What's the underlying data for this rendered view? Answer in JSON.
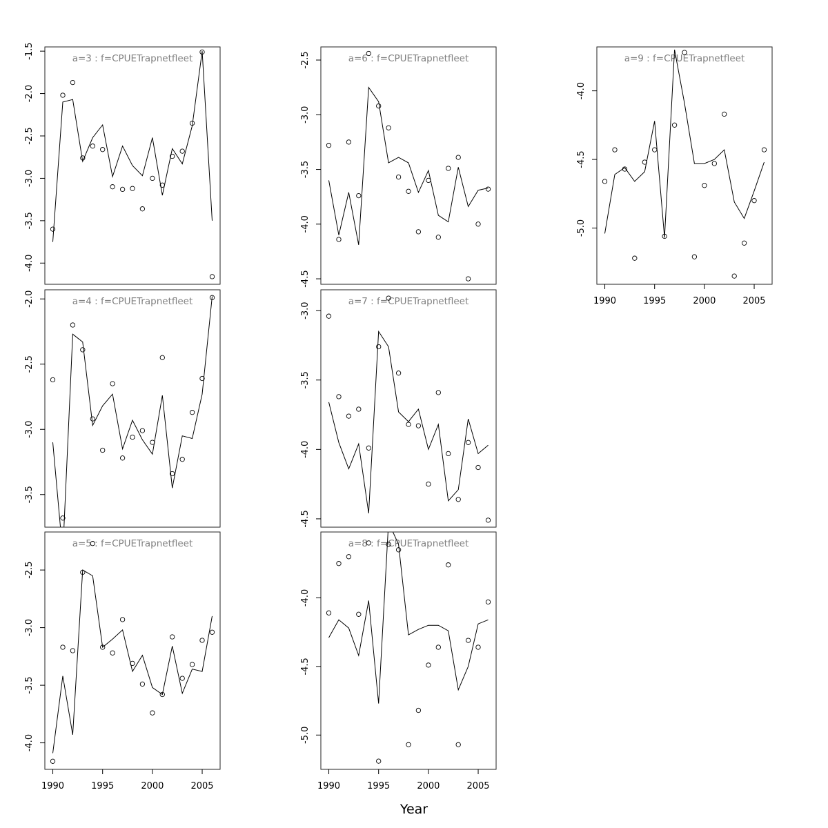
{
  "figure": {
    "xlabel": "Year"
  },
  "chart_data": [
    {
      "type": "line+scatter",
      "title": "a=3  :  f=CPUETrapnetfleet",
      "xlim": [
        1989.2,
        2006.8
      ],
      "ylim": [
        -4.25,
        -1.45
      ],
      "yticks": [
        "-1.5",
        "-2.0",
        "-2.5",
        "-3.0",
        "-3.5",
        "-4.0"
      ],
      "x": [
        1990,
        1991,
        1992,
        1993,
        1994,
        1995,
        1996,
        1997,
        1998,
        1999,
        2000,
        2001,
        2002,
        2003,
        2004,
        2005,
        2006
      ],
      "fitted": [
        -3.75,
        -2.1,
        -2.07,
        -2.8,
        -2.52,
        -2.37,
        -2.98,
        -2.62,
        -2.85,
        -2.97,
        -2.52,
        -3.2,
        -2.65,
        -2.83,
        -2.38,
        -1.5,
        -3.5
      ],
      "observed": [
        -3.6,
        -2.02,
        -1.87,
        -2.76,
        -2.62,
        -2.66,
        -3.1,
        -3.13,
        -3.12,
        -3.36,
        -3.0,
        -3.08,
        -2.74,
        -2.68,
        -2.35,
        -1.51,
        -4.16
      ]
    },
    {
      "type": "line+scatter",
      "title": "a=4  :  f=CPUETrapnetfleet",
      "xlim": [
        1989.2,
        2006.8
      ],
      "ylim": [
        -3.75,
        -1.93
      ],
      "yticks": [
        "-2.0",
        "-2.5",
        "-3.0",
        "-3.5"
      ],
      "x": [
        1990,
        1991,
        1992,
        1993,
        1994,
        1995,
        1996,
        1997,
        1998,
        1999,
        2000,
        2001,
        2002,
        2003,
        2004,
        2005,
        2006
      ],
      "fitted": [
        -3.1,
        -3.95,
        -2.27,
        -2.33,
        -2.97,
        -2.82,
        -2.73,
        -3.15,
        -2.93,
        -3.08,
        -3.19,
        -2.74,
        -3.45,
        -3.05,
        -3.07,
        -2.73,
        -1.98
      ],
      "observed": [
        -2.62,
        -3.68,
        -2.2,
        -2.39,
        -2.92,
        -3.16,
        -2.65,
        -3.22,
        -3.06,
        -3.01,
        -3.1,
        -2.45,
        -3.34,
        -3.23,
        -2.87,
        -2.61,
        -1.99
      ]
    },
    {
      "type": "line+scatter",
      "title": "a=5  :  f=CPUETrapnetfleet",
      "xlim": [
        1989.2,
        2006.8
      ],
      "ylim": [
        -4.23,
        -2.17
      ],
      "yticks": [
        "-2.5",
        "-3.0",
        "-3.5",
        "-4.0"
      ],
      "x": [
        1990,
        1991,
        1992,
        1993,
        1994,
        1995,
        1996,
        1997,
        1998,
        1999,
        2000,
        2001,
        2002,
        2003,
        2004,
        2005,
        2006
      ],
      "fitted": [
        -4.09,
        -3.42,
        -3.93,
        -2.5,
        -2.55,
        -3.17,
        -3.1,
        -3.02,
        -3.38,
        -3.24,
        -3.52,
        -3.58,
        -3.16,
        -3.57,
        -3.36,
        -3.38,
        -2.9
      ],
      "observed": [
        -4.16,
        -3.17,
        -3.2,
        -2.52,
        -2.27,
        -3.17,
        -3.22,
        -2.93,
        -3.31,
        -3.49,
        -3.74,
        -3.58,
        -3.08,
        -3.44,
        -3.32,
        -3.11,
        -3.04
      ]
    },
    {
      "type": "line+scatter",
      "title": "a=6  :  f=CPUETrapnetfleet",
      "xlim": [
        1989.2,
        2006.8
      ],
      "ylim": [
        -4.55,
        -2.38
      ],
      "yticks": [
        "-2.5",
        "-3.0",
        "-3.5",
        "-4.0",
        "-4.5"
      ],
      "x": [
        1990,
        1991,
        1992,
        1993,
        1994,
        1995,
        1996,
        1997,
        1998,
        1999,
        2000,
        2001,
        2002,
        2003,
        2004,
        2005,
        2006
      ],
      "fitted": [
        -3.6,
        -4.1,
        -3.71,
        -4.19,
        -2.75,
        -2.88,
        -3.44,
        -3.39,
        -3.44,
        -3.71,
        -3.51,
        -3.92,
        -3.98,
        -3.48,
        -3.84,
        -3.69,
        -3.67
      ],
      "observed": [
        -3.28,
        -4.14,
        -3.25,
        -3.74,
        -2.44,
        -2.92,
        -3.12,
        -3.57,
        -3.7,
        -4.07,
        -3.6,
        -4.12,
        -3.49,
        -3.39,
        -4.5,
        -4.0,
        -3.68
      ]
    },
    {
      "type": "line+scatter",
      "title": "a=7  :  f=CPUETrapnetfleet",
      "xlim": [
        1989.2,
        2006.8
      ],
      "ylim": [
        -4.56,
        -2.85
      ],
      "yticks": [
        "-3.0",
        "-3.5",
        "-4.0",
        "-4.5"
      ],
      "x": [
        1990,
        1991,
        1992,
        1993,
        1994,
        1995,
        1996,
        1997,
        1998,
        1999,
        2000,
        2001,
        2002,
        2003,
        2004,
        2005,
        2006
      ],
      "fitted": [
        -3.66,
        -3.95,
        -4.14,
        -3.96,
        -4.46,
        -3.15,
        -3.26,
        -3.73,
        -3.8,
        -3.71,
        -4.0,
        -3.82,
        -4.37,
        -4.29,
        -3.78,
        -4.03,
        -3.97
      ],
      "observed": [
        -3.04,
        -3.62,
        -3.76,
        -3.71,
        -3.99,
        -3.26,
        -2.91,
        -3.45,
        -3.82,
        -3.83,
        -4.25,
        -3.59,
        -4.03,
        -4.36,
        -3.95,
        -4.13,
        -4.51
      ]
    },
    {
      "type": "line+scatter",
      "title": "a=8  :  f=CPUETrapnetfleet",
      "xlim": [
        1989.2,
        2006.8
      ],
      "ylim": [
        -5.25,
        -3.52
      ],
      "yticks": [
        "-4.0",
        "-4.5",
        "-5.0"
      ],
      "x": [
        1990,
        1991,
        1992,
        1993,
        1994,
        1995,
        1996,
        1997,
        1998,
        1999,
        2000,
        2001,
        2002,
        2003,
        2004,
        2005,
        2006
      ],
      "fitted": [
        -4.29,
        -4.16,
        -4.22,
        -4.42,
        -4.02,
        -4.77,
        -3.45,
        -3.61,
        -4.27,
        -4.23,
        -4.2,
        -4.2,
        -4.24,
        -4.67,
        -4.5,
        -4.19,
        -4.16
      ],
      "observed": [
        -4.11,
        -3.75,
        -3.7,
        -4.12,
        -3.6,
        -5.19,
        -3.61,
        -3.65,
        -5.07,
        -4.82,
        -4.49,
        -4.36,
        -3.76,
        -5.07,
        -4.31,
        -4.36,
        -4.03
      ]
    },
    {
      "type": "line+scatter",
      "title": "a=9  :  f=CPUETrapnetfleet",
      "xlim": [
        1989.2,
        2006.8
      ],
      "ylim": [
        -5.41,
        -3.68
      ],
      "yticks": [
        "-4.0",
        "-4.5",
        "-5.0"
      ],
      "x": [
        1990,
        1991,
        1992,
        1993,
        1994,
        1995,
        1996,
        1997,
        1998,
        1999,
        2000,
        2001,
        2002,
        2003,
        2004,
        2005,
        2006
      ],
      "fitted": [
        -5.04,
        -4.61,
        -4.56,
        -4.66,
        -4.59,
        -4.22,
        -5.07,
        -3.7,
        -4.09,
        -4.53,
        -4.53,
        -4.5,
        -4.43,
        -4.81,
        -4.93,
        -4.73,
        -4.52
      ],
      "observed": [
        -4.66,
        -4.43,
        -4.57,
        -5.22,
        -4.52,
        -4.43,
        -5.06,
        -4.25,
        -3.72,
        -5.21,
        -4.69,
        -4.53,
        -4.17,
        -5.35,
        -5.11,
        -4.8,
        -4.43
      ]
    }
  ]
}
